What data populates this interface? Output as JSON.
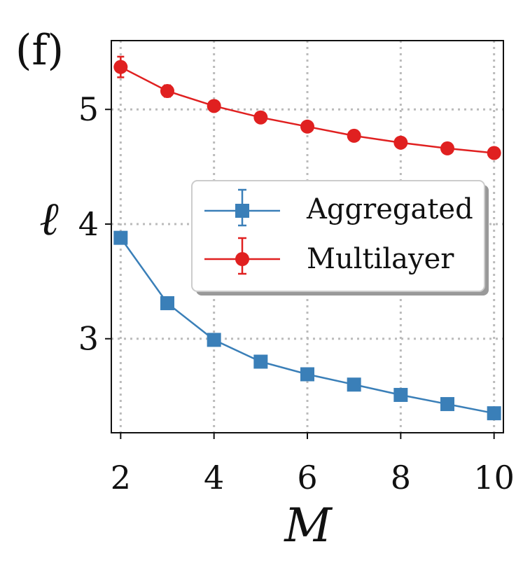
{
  "panel_label": "(f)",
  "chart_data": {
    "type": "line",
    "title": "",
    "xlabel": "M",
    "ylabel": "ℓ",
    "x": [
      2,
      3,
      4,
      5,
      6,
      7,
      8,
      9,
      10
    ],
    "xticks": [
      2,
      4,
      6,
      8,
      10
    ],
    "yticks": [
      3,
      4,
      5
    ],
    "xlim": [
      1.8,
      10.2
    ],
    "ylim": [
      2.18,
      5.6
    ],
    "grid": true,
    "legend_position": "center-right",
    "series": [
      {
        "name": "Aggregated",
        "marker": "square",
        "color": "#3a7fb8",
        "values": [
          3.88,
          3.31,
          2.99,
          2.8,
          2.69,
          2.6,
          2.51,
          2.43,
          2.35
        ],
        "errors": [
          0.02,
          0.02,
          0.01,
          0.01,
          0.01,
          0.01,
          0.01,
          0.01,
          0.01
        ]
      },
      {
        "name": "Multilayer",
        "marker": "circle",
        "color": "#e02020",
        "values": [
          5.37,
          5.16,
          5.03,
          4.93,
          4.85,
          4.77,
          4.71,
          4.66,
          4.62
        ],
        "errors": [
          0.09,
          0.05,
          0.02,
          0.02,
          0.01,
          0.01,
          0.01,
          0.01,
          0.01
        ]
      }
    ]
  }
}
